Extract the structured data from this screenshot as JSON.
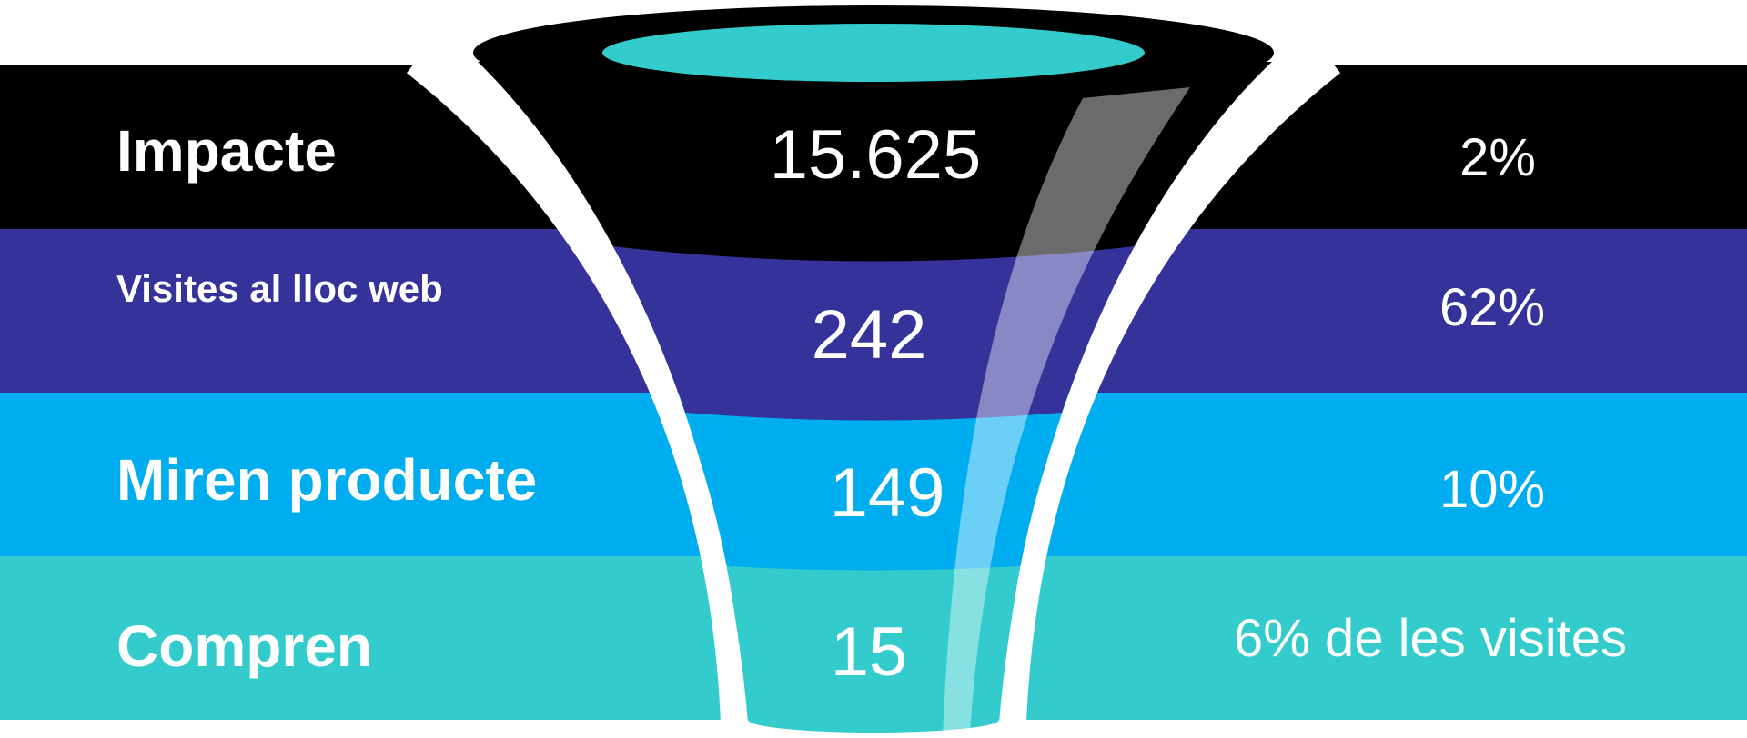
{
  "colors": {
    "stage_1": "#000000",
    "stage_2": "#35329a",
    "stage_3": "#00adef",
    "stage_4": "#33cbcc",
    "funnel_rim": "#000000",
    "funnel_top": "#33cbcc",
    "separator": "#ffffff"
  },
  "stages": [
    {
      "label": "Impacte",
      "value": "15.625",
      "rate": "2%"
    },
    {
      "label": "Visites al lloc web",
      "value": "242",
      "rate": "62%"
    },
    {
      "label": "Miren producte",
      "value": "149",
      "rate": "10%"
    },
    {
      "label": "Compren",
      "value": "15",
      "rate": "6% de les visites"
    }
  ]
}
